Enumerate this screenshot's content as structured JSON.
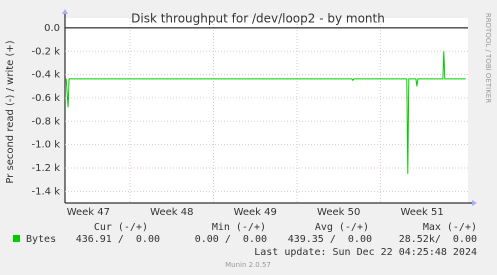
{
  "chart_data": {
    "type": "line",
    "title": "Disk throughput for /dev/loop2 - by month",
    "y_label": "Pr second read (-) / write (+)",
    "side_text": "RRDTOOL / TOBI OETIKER",
    "series": [
      {
        "name": "Bytes",
        "color": "#00cc00",
        "x": [
          47.234,
          47.257,
          47.269,
          50.659,
          50.671,
          50.683,
          51.317,
          51.329,
          51.341,
          51.425,
          51.437,
          51.449,
          51.749,
          51.76,
          51.772,
          52.024
        ],
        "values": [
          -437,
          -680,
          -437,
          -437,
          -450,
          -437,
          -437,
          -1250,
          -437,
          -437,
          -500,
          -437,
          -437,
          -200,
          -437,
          -437
        ]
      }
    ],
    "xlim": [
      47.22,
      52.05
    ],
    "xticks": [
      {
        "value": 47,
        "label": "Week 47"
      },
      {
        "value": 48,
        "label": "Week 48"
      },
      {
        "value": 49,
        "label": "Week 49"
      },
      {
        "value": 50,
        "label": "Week 50"
      },
      {
        "value": 51,
        "label": "Week 51"
      }
    ],
    "ylim": [
      -1500,
      85
    ],
    "yticks": [
      {
        "value": 0,
        "label": "0.0"
      },
      {
        "value": -200,
        "label": "-0.2 k"
      },
      {
        "value": -400,
        "label": "-0.4 k"
      },
      {
        "value": -600,
        "label": "-0.6 k"
      },
      {
        "value": -800,
        "label": "-0.8 k"
      },
      {
        "value": -1000,
        "label": "-1.0 k"
      },
      {
        "value": -1200,
        "label": "-1.2 k"
      },
      {
        "value": -1400,
        "label": "-1.4 k"
      }
    ],
    "grid": true,
    "legend_table": {
      "headers": [
        "Cur (-/+)",
        "Min (-/+)",
        "Avg (-/+)",
        "Max (-/+)"
      ],
      "rows": [
        [
          "436.91 /  0.00",
          "0.00 /  0.00",
          "439.35 /  0.00",
          "28.52k/  0.00"
        ]
      ]
    },
    "last_update": "Last update: Sun Dec 22 04:25:48 2024",
    "footer": "Munin 2.0.57"
  }
}
